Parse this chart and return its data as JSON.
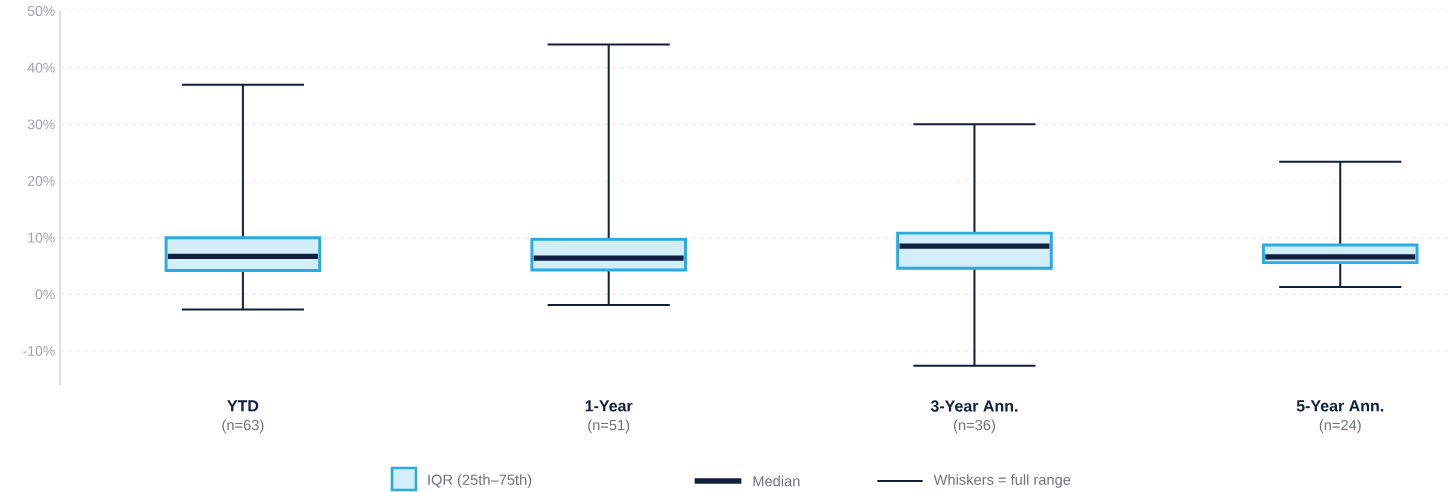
{
  "chart_data": {
    "type": "box",
    "categories": [
      "YTD",
      "1-Year",
      "3-Year Ann.",
      "5-Year Ann."
    ],
    "series": [
      {
        "color": "#29abe2",
        "boxes": [
          {
            "low": -2.7,
            "q1": 4.2,
            "median": 6.7,
            "q3": 10.0,
            "high": 37.0
          },
          {
            "low": -1.9,
            "q1": 4.3,
            "median": 6.4,
            "q3": 9.7,
            "high": 44.1
          },
          {
            "low": -12.6,
            "q1": 4.6,
            "median": 8.5,
            "q3": 10.8,
            "high": 30.0
          },
          {
            "low": 1.3,
            "q1": 5.6,
            "median": 6.6,
            "q3": 8.7,
            "high": 23.4
          }
        ]
      }
    ],
    "ylim": [
      -16,
      50
    ],
    "yticks": [
      {
        "value": -10,
        "label": "-10%"
      },
      {
        "value": 0,
        "label": "0%"
      },
      {
        "value": 10,
        "label": "10%"
      },
      {
        "value": 20,
        "label": "20%"
      },
      {
        "value": 30,
        "label": "30%"
      },
      {
        "value": 40,
        "label": "40%"
      },
      {
        "value": 50,
        "label": "50%"
      }
    ],
    "grid": "y",
    "annotations": [
      "(n=63)",
      "(n=51)",
      "(n=36)",
      "(n=24)",
      "IQR (25th–75th)",
      "Median",
      "Whiskers = full range"
    ]
  }
}
